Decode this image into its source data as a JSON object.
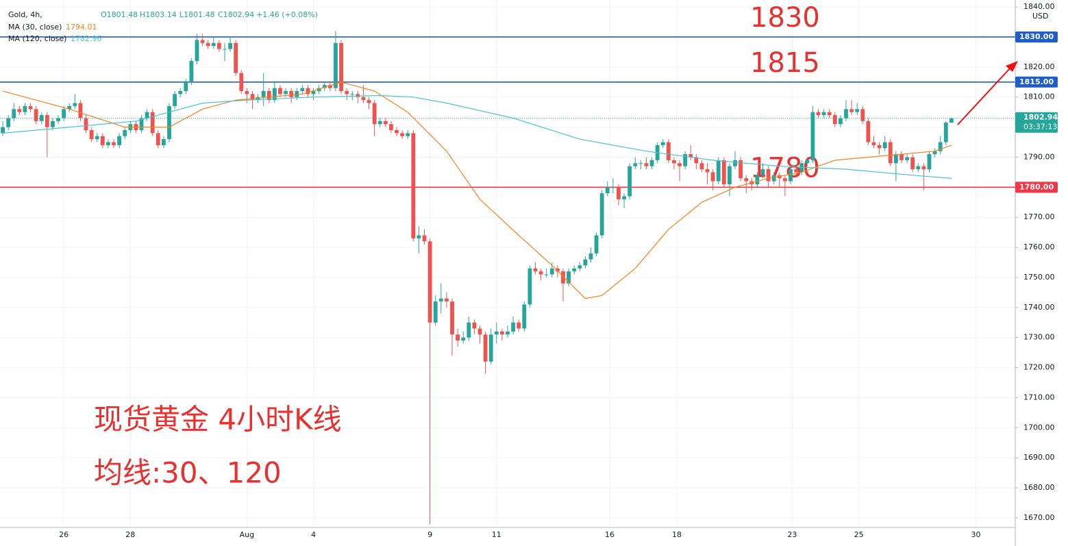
{
  "chart_data": {
    "type": "candlestick",
    "header": {
      "symbol": "Gold, 4h,",
      "open": "O1801.48",
      "high": "H1803.14",
      "low": "L1801.48",
      "close": "C1802.94",
      "change": "+1.46 (+0.08%)"
    },
    "up_color": "#26a69a",
    "down_color": "#ef5350",
    "xlim": [
      -0.5,
      182.5
    ],
    "ylim": [
      1666.8,
      1842.3
    ],
    "xticks": [
      {
        "value": 11,
        "label": "26"
      },
      {
        "value": 23,
        "label": "28"
      },
      {
        "value": 44,
        "label": "Aug"
      },
      {
        "value": 56,
        "label": "4"
      },
      {
        "value": 77,
        "label": "9"
      },
      {
        "value": 89,
        "label": "11"
      },
      {
        "value": 109.4,
        "label": "16"
      },
      {
        "value": 121.5,
        "label": "18"
      },
      {
        "value": 142.3,
        "label": "23"
      },
      {
        "value": 154.3,
        "label": "25"
      },
      {
        "value": 175.4,
        "label": "30"
      }
    ],
    "yticks": [
      {
        "value": 1670,
        "label": "1670.00"
      },
      {
        "value": 1680,
        "label": "1680.00"
      },
      {
        "value": 1690,
        "label": "1690.00"
      },
      {
        "value": 1700,
        "label": "1700.00"
      },
      {
        "value": 1710,
        "label": "1710.00"
      },
      {
        "value": 1720,
        "label": "1720.00"
      },
      {
        "value": 1730,
        "label": "1730.00"
      },
      {
        "value": 1740,
        "label": "1740.00"
      },
      {
        "value": 1750,
        "label": "1750.00"
      },
      {
        "value": 1760,
        "label": "1760.00"
      },
      {
        "value": 1770,
        "label": "1770.00"
      },
      {
        "value": 1780,
        "label": "1780.00"
      },
      {
        "value": 1790,
        "label": "1790.00"
      },
      {
        "value": 1800,
        "label": "1800.00"
      },
      {
        "value": 1810,
        "label": "1810.00"
      },
      {
        "value": 1820,
        "label": "1820.00"
      },
      {
        "value": 1830,
        "label": "1830.00"
      },
      {
        "value": 1840,
        "label": "1840.00"
      }
    ],
    "y_unit": "USD",
    "grid": true,
    "ohlc": [
      [
        1798,
        1802,
        1797,
        1800
      ],
      [
        1800,
        1804,
        1799,
        1803
      ],
      [
        1803,
        1808,
        1802,
        1806
      ],
      [
        1806,
        1807,
        1804,
        1805
      ],
      [
        1805,
        1808,
        1804,
        1807
      ],
      [
        1807,
        1808,
        1805,
        1806
      ],
      [
        1806,
        1807,
        1801,
        1802
      ],
      [
        1802,
        1805,
        1801,
        1804
      ],
      [
        1804,
        1805,
        1790,
        1800
      ],
      [
        1800,
        1803,
        1799,
        1802
      ],
      [
        1802,
        1804,
        1801,
        1803
      ],
      [
        1803,
        1807,
        1802,
        1806
      ],
      [
        1806,
        1808,
        1805,
        1807
      ],
      [
        1807,
        1811,
        1806,
        1808
      ],
      [
        1808,
        1809,
        1802,
        1803
      ],
      [
        1803,
        1804,
        1798,
        1799
      ],
      [
        1799,
        1800,
        1795,
        1796
      ],
      [
        1796,
        1798,
        1795,
        1797
      ],
      [
        1797,
        1798,
        1793,
        1794
      ],
      [
        1794,
        1796,
        1793,
        1795
      ],
      [
        1795,
        1796,
        1793,
        1794
      ],
      [
        1794,
        1798,
        1793,
        1797
      ],
      [
        1797,
        1800,
        1796,
        1799
      ],
      [
        1799,
        1802,
        1798,
        1801
      ],
      [
        1801,
        1802,
        1798,
        1799
      ],
      [
        1799,
        1804,
        1798,
        1803
      ],
      [
        1803,
        1806,
        1802,
        1805
      ],
      [
        1805,
        1806,
        1797,
        1798
      ],
      [
        1798,
        1799,
        1793,
        1794
      ],
      [
        1794,
        1797,
        1793,
        1796
      ],
      [
        1796,
        1808,
        1795,
        1807
      ],
      [
        1807,
        1812,
        1806,
        1811
      ],
      [
        1811,
        1813,
        1810,
        1812
      ],
      [
        1812,
        1816,
        1811,
        1815
      ],
      [
        1815,
        1823,
        1814,
        1822
      ],
      [
        1822,
        1831,
        1821,
        1829
      ],
      [
        1829,
        1831,
        1827,
        1828
      ],
      [
        1828,
        1829,
        1826,
        1827
      ],
      [
        1827,
        1830,
        1826,
        1828
      ],
      [
        1828,
        1829,
        1825,
        1826
      ],
      [
        1826,
        1828,
        1822,
        1826
      ],
      [
        1826,
        1830,
        1825,
        1828
      ],
      [
        1828,
        1829,
        1817,
        1818
      ],
      [
        1818,
        1819,
        1811,
        1812
      ],
      [
        1812,
        1813,
        1808,
        1811
      ],
      [
        1811,
        1812,
        1806,
        1809
      ],
      [
        1809,
        1811,
        1808,
        1810
      ],
      [
        1810,
        1818,
        1807,
        1812
      ],
      [
        1812,
        1813,
        1808,
        1809
      ],
      [
        1809,
        1815,
        1808,
        1813
      ],
      [
        1813,
        1814,
        1810,
        1811
      ],
      [
        1811,
        1813,
        1810,
        1812
      ],
      [
        1812,
        1813,
        1808,
        1810
      ],
      [
        1810,
        1813,
        1809,
        1812
      ],
      [
        1812,
        1814,
        1811,
        1813
      ],
      [
        1813,
        1814,
        1810,
        1811
      ],
      [
        1811,
        1813,
        1809,
        1812
      ],
      [
        1812,
        1814,
        1811,
        1813
      ],
      [
        1813,
        1815,
        1812,
        1814
      ],
      [
        1814,
        1815,
        1812,
        1813
      ],
      [
        1813,
        1832,
        1812,
        1828
      ],
      [
        1828,
        1829,
        1811,
        1812
      ],
      [
        1812,
        1813,
        1809,
        1811
      ],
      [
        1811,
        1812,
        1809,
        1811
      ],
      [
        1811,
        1812,
        1808,
        1810
      ],
      [
        1810,
        1814,
        1808,
        1809
      ],
      [
        1809,
        1810,
        1806,
        1808
      ],
      [
        1808,
        1809,
        1797,
        1801
      ],
      [
        1801,
        1803,
        1800,
        1802
      ],
      [
        1802,
        1803,
        1800,
        1801
      ],
      [
        1801,
        1802,
        1798,
        1799
      ],
      [
        1799,
        1800,
        1797,
        1798
      ],
      [
        1798,
        1799,
        1796,
        1797
      ],
      [
        1797,
        1799,
        1796,
        1798
      ],
      [
        1798,
        1799,
        1762,
        1763
      ],
      [
        1763,
        1767,
        1758,
        1764
      ],
      [
        1764,
        1766,
        1761,
        1762
      ],
      [
        1762,
        1763,
        1668,
        1735
      ],
      [
        1735,
        1744,
        1734,
        1742
      ],
      [
        1742,
        1748,
        1738,
        1743
      ],
      [
        1743,
        1745,
        1740,
        1742
      ],
      [
        1742,
        1743,
        1724,
        1731
      ],
      [
        1731,
        1733,
        1727,
        1729
      ],
      [
        1729,
        1732,
        1728,
        1730
      ],
      [
        1730,
        1737,
        1729,
        1735
      ],
      [
        1735,
        1736,
        1731,
        1733
      ],
      [
        1733,
        1734,
        1728,
        1731
      ],
      [
        1731,
        1732,
        1718,
        1722
      ],
      [
        1722,
        1733,
        1721,
        1731
      ],
      [
        1731,
        1735,
        1728,
        1732
      ],
      [
        1732,
        1733,
        1729,
        1731
      ],
      [
        1731,
        1734,
        1730,
        1732
      ],
      [
        1732,
        1737,
        1731,
        1735
      ],
      [
        1735,
        1736,
        1732,
        1733
      ],
      [
        1733,
        1742,
        1732,
        1741
      ],
      [
        1741,
        1754,
        1740,
        1753
      ],
      [
        1753,
        1755,
        1751,
        1752
      ],
      [
        1752,
        1753,
        1749,
        1751
      ],
      [
        1751,
        1753,
        1750,
        1751
      ],
      [
        1751,
        1755,
        1750,
        1753
      ],
      [
        1753,
        1754,
        1750,
        1752
      ],
      [
        1752,
        1753,
        1742,
        1748
      ],
      [
        1748,
        1753,
        1747,
        1752
      ],
      [
        1752,
        1754,
        1751,
        1753
      ],
      [
        1753,
        1755,
        1752,
        1754
      ],
      [
        1754,
        1757,
        1753,
        1756
      ],
      [
        1756,
        1760,
        1755,
        1758
      ],
      [
        1758,
        1765,
        1757,
        1764
      ],
      [
        1764,
        1779,
        1763,
        1778
      ],
      [
        1778,
        1782,
        1777,
        1780
      ],
      [
        1780,
        1783,
        1778,
        1780
      ],
      [
        1780,
        1781,
        1774,
        1776
      ],
      [
        1776,
        1778,
        1773,
        1777
      ],
      [
        1777,
        1788,
        1776,
        1787
      ],
      [
        1787,
        1790,
        1786,
        1788
      ],
      [
        1788,
        1789,
        1786,
        1788
      ],
      [
        1788,
        1790,
        1786,
        1787
      ],
      [
        1787,
        1790,
        1786,
        1789
      ],
      [
        1789,
        1795,
        1788,
        1794
      ],
      [
        1794,
        1796,
        1793,
        1795
      ],
      [
        1795,
        1796,
        1788,
        1789
      ],
      [
        1789,
        1790,
        1786,
        1788
      ],
      [
        1788,
        1789,
        1782,
        1787
      ],
      [
        1787,
        1792,
        1786,
        1791
      ],
      [
        1791,
        1794,
        1789,
        1790
      ],
      [
        1790,
        1791,
        1786,
        1788
      ],
      [
        1788,
        1789,
        1785,
        1786
      ],
      [
        1786,
        1788,
        1781,
        1785
      ],
      [
        1785,
        1786,
        1779,
        1782
      ],
      [
        1782,
        1790,
        1781,
        1789
      ],
      [
        1789,
        1790,
        1780,
        1781
      ],
      [
        1781,
        1788,
        1777,
        1787
      ],
      [
        1787,
        1792,
        1786,
        1789
      ],
      [
        1789,
        1790,
        1782,
        1783
      ],
      [
        1783,
        1784,
        1778,
        1782
      ],
      [
        1782,
        1783,
        1779,
        1781
      ],
      [
        1781,
        1785,
        1780,
        1784
      ],
      [
        1784,
        1788,
        1783,
        1786
      ],
      [
        1786,
        1787,
        1780,
        1782
      ],
      [
        1782,
        1785,
        1781,
        1784
      ],
      [
        1784,
        1785,
        1780,
        1783
      ],
      [
        1783,
        1784,
        1777,
        1782
      ],
      [
        1782,
        1787,
        1781,
        1786
      ],
      [
        1786,
        1787,
        1784,
        1785
      ],
      [
        1785,
        1789,
        1784,
        1788
      ],
      [
        1788,
        1790,
        1787,
        1789
      ],
      [
        1789,
        1807,
        1788,
        1805
      ],
      [
        1805,
        1806,
        1803,
        1804
      ],
      [
        1804,
        1806,
        1803,
        1805
      ],
      [
        1805,
        1806,
        1803,
        1804
      ],
      [
        1804,
        1805,
        1800,
        1801
      ],
      [
        1801,
        1804,
        1800,
        1803
      ],
      [
        1803,
        1809,
        1802,
        1806
      ],
      [
        1806,
        1809,
        1804,
        1805
      ],
      [
        1805,
        1808,
        1804,
        1806
      ],
      [
        1806,
        1807,
        1801,
        1802
      ],
      [
        1802,
        1803,
        1794,
        1795
      ],
      [
        1795,
        1797,
        1793,
        1794
      ],
      [
        1794,
        1795,
        1791,
        1793
      ],
      [
        1793,
        1797,
        1792,
        1795
      ],
      [
        1795,
        1796,
        1787,
        1788
      ],
      [
        1788,
        1792,
        1782,
        1791
      ],
      [
        1791,
        1792,
        1788,
        1789
      ],
      [
        1789,
        1791,
        1788,
        1790
      ],
      [
        1790,
        1791,
        1785,
        1786
      ],
      [
        1786,
        1788,
        1785,
        1787
      ],
      [
        1787,
        1788,
        1779,
        1786
      ],
      [
        1786,
        1792,
        1785,
        1791
      ],
      [
        1791,
        1793,
        1790,
        1792
      ],
      [
        1792,
        1797,
        1791,
        1795
      ],
      [
        1795,
        1802,
        1794,
        1801.48
      ],
      [
        1801.48,
        1803.14,
        1801.48,
        1802.94
      ]
    ],
    "series": [
      {
        "name": "MA (30, close)",
        "color": "#f7821b",
        "last_label": "1794.01",
        "x": [
          0,
          12,
          22,
          30,
          36,
          42,
          54,
          61,
          67,
          73,
          80,
          86,
          93,
          99,
          105,
          108,
          114,
          120,
          126,
          132,
          138,
          144,
          150,
          156,
          162,
          168,
          171
        ],
        "values": [
          1812,
          1806,
          1800,
          1800,
          1806,
          1809,
          1811,
          1815,
          1812,
          1805,
          1792,
          1776,
          1764,
          1754,
          1743,
          1744,
          1753,
          1766,
          1775,
          1780,
          1783,
          1785,
          1789,
          1790,
          1791,
          1792,
          1794.01
        ]
      },
      {
        "name": "MA (120, close)",
        "color": "#4cc2cf",
        "last_label": "1782.96",
        "x": [
          0,
          12,
          24,
          30,
          36,
          44,
          56,
          68,
          74,
          80,
          92,
          104,
          116,
          128,
          140,
          152,
          164,
          171
        ],
        "values": [
          1798,
          1800,
          1802,
          1805,
          1808,
          1809,
          1810,
          1810.5,
          1810,
          1808,
          1803,
          1796,
          1792,
          1789,
          1787,
          1786,
          1784,
          1782.96
        ]
      }
    ],
    "hlines": [
      {
        "value": 1830,
        "label": "1830.00",
        "color": "#1f5dc8"
      },
      {
        "value": 1815,
        "label": "1815.00",
        "color": "#1f5dc8"
      },
      {
        "value": 1780,
        "label": "1780.00",
        "color": "#f23645"
      }
    ],
    "last_price": {
      "label": "1802.94",
      "countdown": "03:37:13"
    },
    "annotations": [
      {
        "text": "1830",
        "y": 1830
      },
      {
        "text": "1815",
        "y": 1815
      },
      {
        "text": "1780",
        "y": 1780
      }
    ],
    "notes": [
      "现货黄金 4小时K线",
      "均线:30、120"
    ]
  }
}
